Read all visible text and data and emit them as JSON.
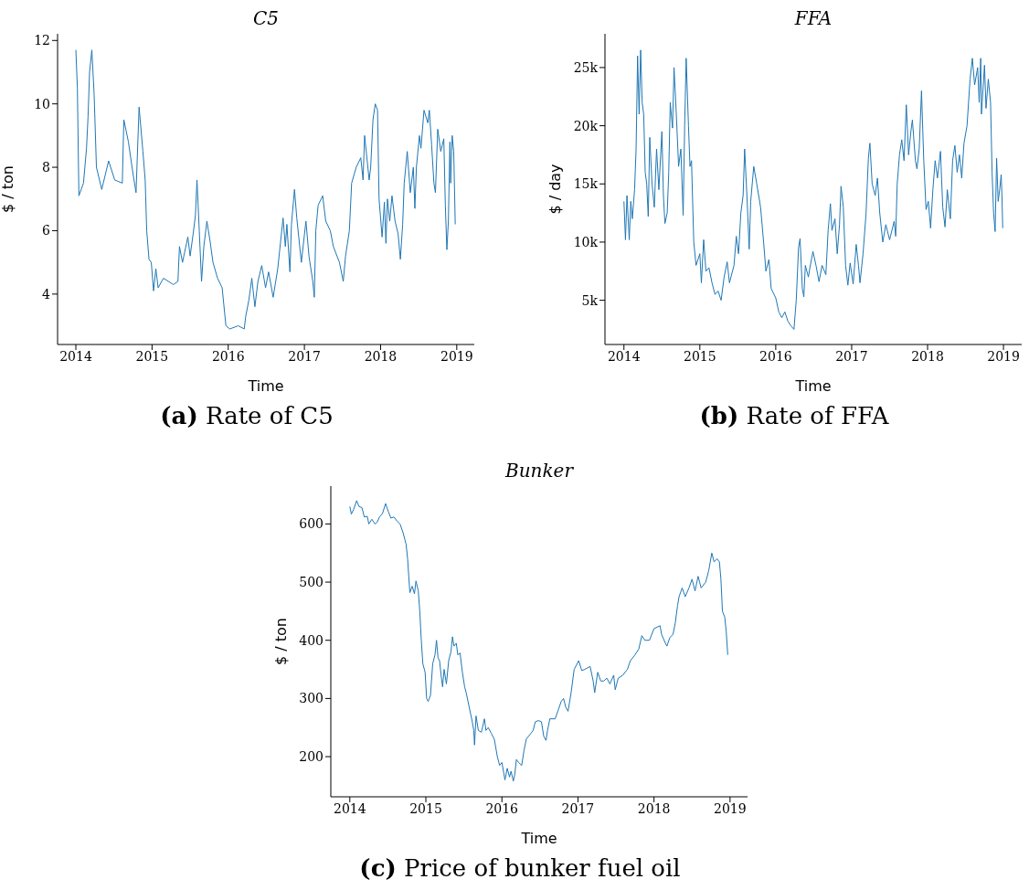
{
  "chart_data": [
    {
      "type": "line",
      "title": "C5",
      "xlabel": "Time",
      "ylabel": "$ / ton",
      "annotations": [
        "(a) Rate of C5"
      ],
      "color": "#1f77b4",
      "xlim": [
        2013.76,
        2019.23
      ],
      "xticks": [
        2014,
        2015,
        2016,
        2017,
        2018,
        2019
      ],
      "ylim": [
        2.41,
        12.21
      ],
      "yticks": [
        4,
        6,
        8,
        10,
        12
      ],
      "x": [
        2014.0,
        2014.02,
        2014.04,
        2014.1,
        2014.14,
        2014.16,
        2014.18,
        2014.21,
        2014.24,
        2014.27,
        2014.34,
        2014.43,
        2014.51,
        2014.61,
        2014.63,
        2014.69,
        2014.75,
        2014.79,
        2014.83,
        2014.88,
        2014.91,
        2014.93,
        2014.96,
        2014.99,
        2015.02,
        2015.05,
        2015.08,
        2015.15,
        2015.28,
        2015.34,
        2015.36,
        2015.4,
        2015.47,
        2015.5,
        2015.54,
        2015.57,
        2015.59,
        2015.62,
        2015.65,
        2015.68,
        2015.72,
        2015.76,
        2015.8,
        2015.86,
        2015.92,
        2015.97,
        2016.02,
        2016.13,
        2016.21,
        2016.23,
        2016.27,
        2016.31,
        2016.35,
        2016.39,
        2016.44,
        2016.49,
        2016.53,
        2016.59,
        2016.65,
        2016.72,
        2016.75,
        2016.77,
        2016.81,
        2016.83,
        2016.87,
        2016.9,
        2016.96,
        2017.02,
        2017.06,
        2017.11,
        2017.13,
        2017.15,
        2017.18,
        2017.24,
        2017.28,
        2017.34,
        2017.38,
        2017.46,
        2017.51,
        2017.54,
        2017.59,
        2017.62,
        2017.68,
        2017.74,
        2017.77,
        2017.79,
        2017.85,
        2017.87,
        2017.9,
        2017.93,
        2017.96,
        2017.98,
        2018.02,
        2018.05,
        2018.07,
        2018.09,
        2018.12,
        2018.15,
        2018.19,
        2018.23,
        2018.26,
        2018.29,
        2018.31,
        2018.35,
        2018.39,
        2018.43,
        2018.45,
        2018.47,
        2018.51,
        2018.53,
        2018.57,
        2018.62,
        2018.64,
        2018.67,
        2018.7,
        2018.72,
        2018.75,
        2018.79,
        2018.83,
        2018.85,
        2018.87,
        2018.89,
        2018.91,
        2018.92,
        2018.94,
        2018.96,
        2018.98
      ],
      "values": [
        11.7,
        10.5,
        7.1,
        7.5,
        8.6,
        9.6,
        11.0,
        11.7,
        10.3,
        8.0,
        7.3,
        8.2,
        7.6,
        7.5,
        9.5,
        8.8,
        7.8,
        7.2,
        9.9,
        8.5,
        7.6,
        6.0,
        5.1,
        5.0,
        4.1,
        4.8,
        4.2,
        4.5,
        4.3,
        4.4,
        5.5,
        5.0,
        5.8,
        5.2,
        5.9,
        6.5,
        7.6,
        6.0,
        4.4,
        5.5,
        6.3,
        5.7,
        5.0,
        4.5,
        4.2,
        3.0,
        2.9,
        3.0,
        2.9,
        3.3,
        3.8,
        4.5,
        3.6,
        4.4,
        4.9,
        4.2,
        4.7,
        3.9,
        4.8,
        6.4,
        5.5,
        6.2,
        4.7,
        6.2,
        7.3,
        6.4,
        5.0,
        6.3,
        5.2,
        4.4,
        3.9,
        6.0,
        6.8,
        7.1,
        6.3,
        6.0,
        5.5,
        5.0,
        4.4,
        5.2,
        6.0,
        7.5,
        8.0,
        8.3,
        7.6,
        9.0,
        7.6,
        8.0,
        9.5,
        10.0,
        9.8,
        7.0,
        5.8,
        6.9,
        5.6,
        7.0,
        6.3,
        7.1,
        6.3,
        5.9,
        5.1,
        6.2,
        7.5,
        8.5,
        7.2,
        8.0,
        6.7,
        8.0,
        9.0,
        8.6,
        9.8,
        9.4,
        9.8,
        8.7,
        7.5,
        7.2,
        9.2,
        8.5,
        8.9,
        6.8,
        5.4,
        6.3,
        8.8,
        7.5,
        9.0,
        8.5,
        6.2
      ]
    },
    {
      "type": "line",
      "title": "FFA",
      "xlabel": "Time",
      "ylabel": "$ / day",
      "annotations": [
        "(b) Rate of FFA"
      ],
      "color": "#1f77b4",
      "xlim": [
        2013.75,
        2019.24
      ],
      "xticks": [
        2014,
        2015,
        2016,
        2017,
        2018,
        2019
      ],
      "ylim": [
        1200,
        27900
      ],
      "yticks": [
        {
          "value": 5000,
          "label": "5k"
        },
        {
          "value": 10000,
          "label": "10k"
        },
        {
          "value": 15000,
          "label": "15k"
        },
        {
          "value": 20000,
          "label": "20k"
        },
        {
          "value": 25000,
          "label": "25k"
        }
      ],
      "x": [
        2014.0,
        2014.02,
        2014.04,
        2014.07,
        2014.09,
        2014.11,
        2014.14,
        2014.16,
        2014.18,
        2014.2,
        2014.22,
        2014.24,
        2014.26,
        2014.28,
        2014.3,
        2014.32,
        2014.34,
        2014.37,
        2014.4,
        2014.43,
        2014.46,
        2014.5,
        2014.52,
        2014.54,
        2014.57,
        2014.59,
        2014.61,
        2014.64,
        2014.66,
        2014.69,
        2014.72,
        2014.75,
        2014.78,
        2014.8,
        2014.82,
        2014.85,
        2014.87,
        2014.89,
        2014.92,
        2014.95,
        2015.0,
        2015.02,
        2015.05,
        2015.08,
        2015.12,
        2015.16,
        2015.2,
        2015.24,
        2015.28,
        2015.32,
        2015.36,
        2015.39,
        2015.45,
        2015.48,
        2015.51,
        2015.54,
        2015.57,
        2015.59,
        2015.62,
        2015.65,
        2015.67,
        2015.71,
        2015.75,
        2015.8,
        2015.84,
        2015.87,
        2015.91,
        2015.94,
        2016.0,
        2016.04,
        2016.08,
        2016.12,
        2016.16,
        2016.2,
        2016.24,
        2016.27,
        2016.3,
        2016.32,
        2016.35,
        2016.37,
        2016.39,
        2016.43,
        2016.45,
        2016.49,
        2016.53,
        2016.57,
        2016.61,
        2016.66,
        2016.69,
        2016.72,
        2016.74,
        2016.78,
        2016.81,
        2016.84,
        2016.86,
        2016.89,
        2016.92,
        2016.95,
        2016.98,
        2017.02,
        2017.06,
        2017.09,
        2017.11,
        2017.15,
        2017.19,
        2017.22,
        2017.24,
        2017.27,
        2017.31,
        2017.34,
        2017.37,
        2017.41,
        2017.45,
        2017.5,
        2017.56,
        2017.58,
        2017.6,
        2017.63,
        2017.66,
        2017.69,
        2017.72,
        2017.75,
        2017.78,
        2017.8,
        2017.84,
        2017.86,
        2017.89,
        2017.92,
        2017.95,
        2017.98,
        2018.01,
        2018.04,
        2018.07,
        2018.1,
        2018.13,
        2018.17,
        2018.2,
        2018.23,
        2018.26,
        2018.3,
        2018.33,
        2018.36,
        2018.39,
        2018.42,
        2018.45,
        2018.48,
        2018.52,
        2018.56,
        2018.59,
        2018.62,
        2018.66,
        2018.68,
        2018.7,
        2018.71,
        2018.75,
        2018.77,
        2018.8,
        2018.83,
        2018.85,
        2018.87,
        2018.89,
        2018.91,
        2018.93,
        2018.95,
        2018.97,
        2018.98,
        2018.99
      ],
      "values": [
        13500,
        10200,
        14000,
        10200,
        13500,
        12000,
        14500,
        18000,
        26000,
        21000,
        26500,
        22000,
        21000,
        16000,
        15000,
        12200,
        19000,
        15000,
        13000,
        18000,
        14500,
        19500,
        14000,
        11600,
        12500,
        16000,
        22000,
        19800,
        25000,
        21000,
        16500,
        18000,
        12300,
        20000,
        25800,
        20000,
        16500,
        17000,
        10000,
        8000,
        9000,
        6500,
        10200,
        7500,
        7800,
        6500,
        5500,
        5800,
        5000,
        7000,
        8300,
        6500,
        8000,
        10500,
        9000,
        12500,
        14000,
        18000,
        14000,
        9400,
        13500,
        16500,
        15000,
        13000,
        10000,
        7500,
        8500,
        6000,
        5200,
        4000,
        3500,
        4000,
        3200,
        2800,
        2500,
        5000,
        9500,
        10300,
        6000,
        5300,
        8000,
        7000,
        7800,
        9200,
        8000,
        6600,
        8000,
        7200,
        11000,
        13300,
        11000,
        12000,
        9000,
        11500,
        14800,
        13000,
        8000,
        6300,
        8200,
        6400,
        9800,
        8000,
        6500,
        9000,
        12500,
        17200,
        18500,
        15000,
        14000,
        15500,
        12500,
        10000,
        11500,
        10200,
        11800,
        10500,
        15000,
        17500,
        18800,
        17000,
        21800,
        17500,
        19500,
        20500,
        17000,
        16300,
        18000,
        23000,
        17000,
        12800,
        13500,
        11200,
        14500,
        17000,
        15500,
        17800,
        13000,
        11300,
        14500,
        12000,
        17000,
        18300,
        16000,
        17500,
        15500,
        18500,
        20000,
        24000,
        25800,
        23500,
        25000,
        22000,
        25800,
        21000,
        25200,
        21500,
        24000,
        22000,
        16000,
        12500,
        10900,
        17200,
        13500,
        14500,
        15800,
        14000,
        11200
      ]
    },
    {
      "type": "line",
      "title": "Bunker",
      "xlabel": "Time",
      "ylabel": "$ / ton",
      "annotations": [
        "(c) Price of bunker fuel oil"
      ],
      "color": "#1f77b4",
      "xlim": [
        2013.75,
        2019.23
      ],
      "xticks": [
        2014,
        2015,
        2016,
        2017,
        2018,
        2019
      ],
      "ylim": [
        131,
        665
      ],
      "yticks": [
        200,
        300,
        400,
        500,
        600
      ],
      "x": [
        2014.0,
        2014.02,
        2014.05,
        2014.09,
        2014.12,
        2014.16,
        2014.19,
        2014.23,
        2014.25,
        2014.29,
        2014.33,
        2014.36,
        2014.39,
        2014.43,
        2014.47,
        2014.51,
        2014.54,
        2014.58,
        2014.62,
        2014.66,
        2014.7,
        2014.74,
        2014.76,
        2014.78,
        2014.79,
        2014.82,
        2014.85,
        2014.87,
        2014.9,
        2014.92,
        2014.94,
        2014.96,
        2014.99,
        2015.01,
        2015.03,
        2015.06,
        2015.09,
        2015.12,
        2015.14,
        2015.16,
        2015.18,
        2015.2,
        2015.22,
        2015.24,
        2015.27,
        2015.3,
        2015.33,
        2015.35,
        2015.37,
        2015.4,
        2015.42,
        2015.45,
        2015.48,
        2015.51,
        2015.53,
        2015.57,
        2015.61,
        2015.63,
        2015.64,
        2015.66,
        2015.69,
        2015.73,
        2015.77,
        2015.79,
        2015.82,
        2015.86,
        2015.9,
        2015.94,
        2015.97,
        2016.0,
        2016.02,
        2016.04,
        2016.07,
        2016.1,
        2016.12,
        2016.15,
        2016.17,
        2016.19,
        2016.22,
        2016.26,
        2016.29,
        2016.32,
        2016.35,
        2016.38,
        2016.41,
        2016.44,
        2016.48,
        2016.52,
        2016.55,
        2016.58,
        2016.6,
        2016.63,
        2016.67,
        2016.7,
        2016.74,
        2016.78,
        2016.81,
        2016.84,
        2016.87,
        2016.91,
        2016.95,
        2017.01,
        2017.05,
        2017.09,
        2017.16,
        2017.2,
        2017.22,
        2017.26,
        2017.3,
        2017.34,
        2017.38,
        2017.42,
        2017.47,
        2017.49,
        2017.53,
        2017.59,
        2017.65,
        2017.69,
        2017.75,
        2017.8,
        2017.84,
        2017.88,
        2017.94,
        2018.0,
        2018.08,
        2018.1,
        2018.15,
        2018.17,
        2018.21,
        2018.25,
        2018.28,
        2018.31,
        2018.33,
        2018.37,
        2018.41,
        2018.46,
        2018.5,
        2018.54,
        2018.58,
        2018.62,
        2018.68,
        2018.72,
        2018.76,
        2018.79,
        2018.83,
        2018.86,
        2018.88,
        2018.9,
        2018.93,
        2018.95,
        2018.97
      ],
      "values": [
        630,
        617,
        625,
        640,
        630,
        628,
        612,
        613,
        600,
        608,
        600,
        603,
        612,
        618,
        635,
        620,
        610,
        612,
        605,
        600,
        585,
        565,
        540,
        500,
        482,
        493,
        480,
        502,
        485,
        450,
        400,
        360,
        345,
        300,
        295,
        305,
        360,
        375,
        400,
        370,
        365,
        340,
        320,
        350,
        325,
        365,
        380,
        406,
        390,
        395,
        375,
        378,
        345,
        320,
        310,
        285,
        260,
        245,
        220,
        270,
        245,
        242,
        265,
        245,
        250,
        240,
        230,
        200,
        185,
        190,
        175,
        160,
        180,
        165,
        175,
        158,
        170,
        195,
        190,
        185,
        210,
        230,
        235,
        240,
        245,
        260,
        262,
        260,
        235,
        228,
        245,
        265,
        265,
        265,
        280,
        295,
        300,
        285,
        278,
        310,
        350,
        365,
        348,
        350,
        355,
        330,
        310,
        345,
        330,
        330,
        335,
        325,
        340,
        315,
        335,
        340,
        350,
        365,
        375,
        385,
        408,
        400,
        400,
        420,
        425,
        410,
        395,
        390,
        405,
        410,
        430,
        460,
        475,
        490,
        475,
        490,
        505,
        485,
        510,
        490,
        500,
        520,
        550,
        535,
        540,
        535,
        505,
        450,
        440,
        415,
        375
      ]
    }
  ]
}
